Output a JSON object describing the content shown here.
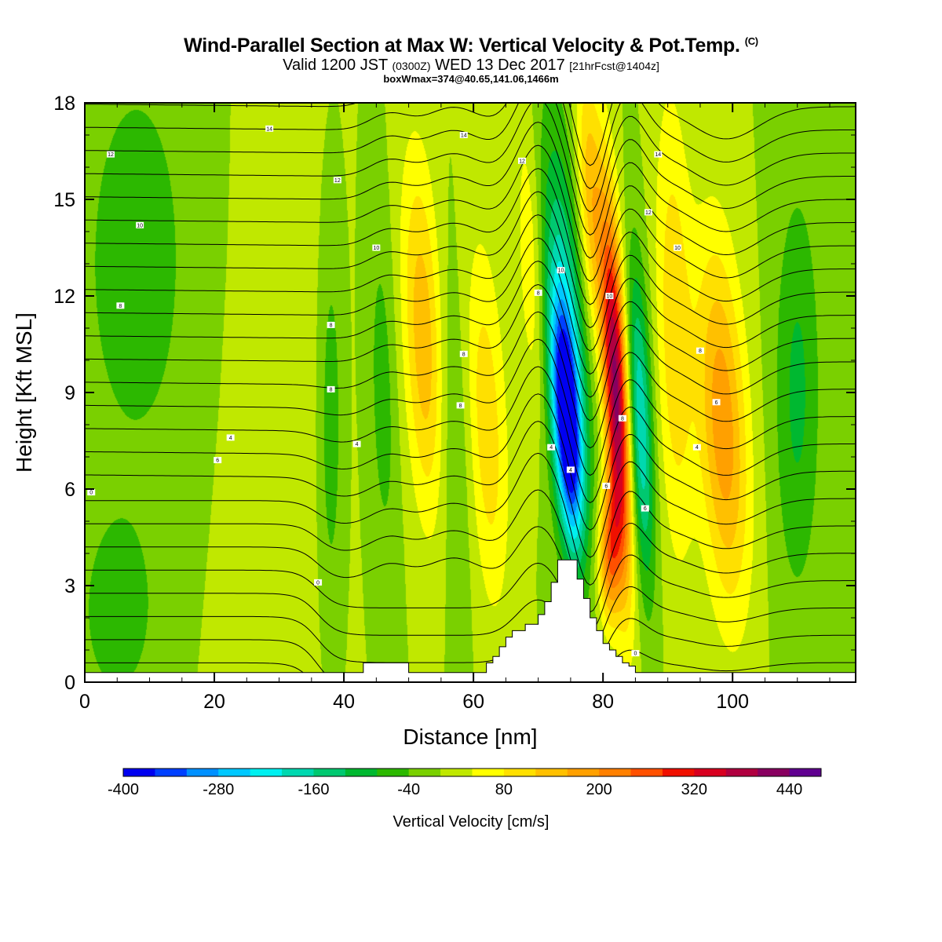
{
  "header": {
    "title": "Wind-Parallel Section at Max W: Vertical Velocity & Pot.Temp.",
    "copyright": "(C)",
    "valid_prefix": "Valid 1200 JST",
    "valid_utc": "(0300Z)",
    "valid_date": "WED 13 Dec 2017",
    "forecast": "[21hrFcst@1404z]",
    "box_wmax": "boxWmax=374@40.65,141.06,1466m"
  },
  "chart_data": {
    "type": "heatmap",
    "title": "Wind-Parallel Section at Max W: Vertical Velocity & Pot.Temp.",
    "xlabel": "Distance [nm]",
    "ylabel": "Height [Kft MSL]",
    "xlim": [
      0,
      119
    ],
    "ylim": [
      0,
      18
    ],
    "x_ticks": [
      0,
      20,
      40,
      60,
      80,
      100
    ],
    "y_ticks": [
      0,
      3,
      6,
      9,
      12,
      15,
      18
    ],
    "colorbar": {
      "label": "Vertical Velocity [cm/s]",
      "tick_labels": [
        -400,
        -280,
        -160,
        -40,
        80,
        200,
        320,
        440
      ],
      "bounds": [
        -400,
        480
      ],
      "step": 40,
      "colors": [
        "#0000f0",
        "#0040ff",
        "#0090ff",
        "#00c8ff",
        "#00f0f0",
        "#00d8b0",
        "#00c870",
        "#00b830",
        "#2cb800",
        "#7ad000",
        "#c0e800",
        "#ffff00",
        "#ffe000",
        "#ffc000",
        "#ffa000",
        "#ff8000",
        "#ff5000",
        "#f01000",
        "#d80020",
        "#b00040",
        "#880060",
        "#600090"
      ]
    },
    "terrain": [
      [
        42,
        0.3
      ],
      [
        43,
        0.6
      ],
      [
        49,
        0.6
      ],
      [
        50,
        0.3
      ],
      [
        61,
        0.3
      ],
      [
        62,
        0.6
      ],
      [
        63,
        0.8
      ],
      [
        64,
        1.1
      ],
      [
        65,
        1.4
      ],
      [
        66,
        1.6
      ],
      [
        68,
        1.8
      ],
      [
        70,
        2.1
      ],
      [
        71,
        2.5
      ],
      [
        72,
        3.1
      ],
      [
        73,
        3.8
      ],
      [
        75,
        3.8
      ],
      [
        76,
        3.2
      ],
      [
        77,
        2.6
      ],
      [
        78,
        2.0
      ],
      [
        79,
        1.6
      ],
      [
        80,
        1.2
      ],
      [
        81,
        1.0
      ],
      [
        82,
        0.8
      ],
      [
        83,
        0.6
      ],
      [
        84,
        0.5
      ],
      [
        85,
        0.3
      ]
    ],
    "w_features": [
      {
        "x": 74.5,
        "y": 8.0,
        "sx": 1.4,
        "sy": 2.5,
        "amp": -390,
        "tilt": -0.27
      },
      {
        "x": 74.0,
        "y": 11.0,
        "sx": 2.6,
        "sy": 4.5,
        "amp": -170,
        "tilt": -0.28
      },
      {
        "x": 82.0,
        "y": 9.0,
        "sx": 1.3,
        "sy": 4.0,
        "amp": 420,
        "tilt": -0.22
      },
      {
        "x": 81.0,
        "y": 4.0,
        "sx": 1.2,
        "sy": 1.5,
        "amp": 220,
        "tilt": 0.0
      },
      {
        "x": 85.8,
        "y": 8.0,
        "sx": 1.3,
        "sy": 3.5,
        "amp": -200,
        "tilt": -0.18
      },
      {
        "x": 98.5,
        "y": 8.0,
        "sx": 2.6,
        "sy": 4.0,
        "amp": 190,
        "tilt": -0.22
      },
      {
        "x": 91.0,
        "y": 11.0,
        "sx": 2.0,
        "sy": 5.0,
        "amp": 110,
        "tilt": -0.1
      },
      {
        "x": 52.5,
        "y": 10.5,
        "sx": 2.2,
        "sy": 4.0,
        "amp": 160,
        "tilt": -0.22
      },
      {
        "x": 62.0,
        "y": 8.0,
        "sx": 2.2,
        "sy": 4.0,
        "amp": 110,
        "tilt": -0.2
      },
      {
        "x": 46.0,
        "y": 9.0,
        "sx": 1.5,
        "sy": 4.0,
        "amp": -60,
        "tilt": -0.1
      },
      {
        "x": 38.0,
        "y": 8.0,
        "sx": 1.2,
        "sy": 4.0,
        "amp": -70,
        "tilt": 0.0
      },
      {
        "x": 56.5,
        "y": 8.0,
        "sx": 2.2,
        "sy": 4.0,
        "amp": -60,
        "tilt": -0.15
      },
      {
        "x": 69.0,
        "y": 13.0,
        "sx": 1.5,
        "sy": 3.5,
        "amp": 90,
        "tilt": -0.2
      },
      {
        "x": 78.0,
        "y": 15.0,
        "sx": 1.4,
        "sy": 3.0,
        "amp": 150,
        "tilt": -0.2
      },
      {
        "x": 110.0,
        "y": 9.0,
        "sx": 2.5,
        "sy": 4.5,
        "amp": -90,
        "tilt": 0.0
      },
      {
        "x": 8.0,
        "y": 13.0,
        "sx": 8.0,
        "sy": 6.0,
        "amp": -55,
        "tilt": 0.0
      },
      {
        "x": 28.0,
        "y": 8.0,
        "sx": 6.0,
        "sy": 8.0,
        "amp": 25,
        "tilt": 0.0
      },
      {
        "x": 5.0,
        "y": 2.0,
        "sx": 4.0,
        "sy": 2.0,
        "amp": -60,
        "tilt": 0.0
      }
    ],
    "theta_contour_labels": [
      {
        "x": 28.5,
        "y": 17.2,
        "text": "14"
      },
      {
        "x": 58.5,
        "y": 17.0,
        "text": "14"
      },
      {
        "x": 88.5,
        "y": 16.4,
        "text": "14"
      },
      {
        "x": 4.0,
        "y": 16.4,
        "text": "12"
      },
      {
        "x": 39.0,
        "y": 15.6,
        "text": "12"
      },
      {
        "x": 67.5,
        "y": 16.2,
        "text": "12"
      },
      {
        "x": 87.0,
        "y": 14.6,
        "text": "12"
      },
      {
        "x": 8.5,
        "y": 14.2,
        "text": "10"
      },
      {
        "x": 45.0,
        "y": 13.5,
        "text": "10"
      },
      {
        "x": 73.5,
        "y": 12.8,
        "text": "10"
      },
      {
        "x": 81.0,
        "y": 12.0,
        "text": "10"
      },
      {
        "x": 91.5,
        "y": 13.5,
        "text": "10"
      },
      {
        "x": 5.5,
        "y": 11.7,
        "text": "8"
      },
      {
        "x": 38.0,
        "y": 11.1,
        "text": "8"
      },
      {
        "x": 70.0,
        "y": 12.1,
        "text": "8"
      },
      {
        "x": 58.5,
        "y": 10.2,
        "text": "8"
      },
      {
        "x": 95.0,
        "y": 10.3,
        "text": "8"
      },
      {
        "x": 38.0,
        "y": 9.1,
        "text": "8"
      },
      {
        "x": 58.0,
        "y": 8.6,
        "text": "8"
      },
      {
        "x": 97.5,
        "y": 8.7,
        "text": "6"
      },
      {
        "x": 22.5,
        "y": 7.6,
        "text": "4"
      },
      {
        "x": 42.0,
        "y": 7.4,
        "text": "4"
      },
      {
        "x": 72.0,
        "y": 7.3,
        "text": "4"
      },
      {
        "x": 94.5,
        "y": 7.3,
        "text": "4"
      },
      {
        "x": 20.5,
        "y": 6.9,
        "text": "6"
      },
      {
        "x": 75.0,
        "y": 6.6,
        "text": "4"
      },
      {
        "x": 80.5,
        "y": 6.1,
        "text": "6"
      },
      {
        "x": 83.0,
        "y": 8.2,
        "text": "8"
      },
      {
        "x": 86.5,
        "y": 5.4,
        "text": "6"
      },
      {
        "x": 1.0,
        "y": 5.9,
        "text": "0"
      },
      {
        "x": 36.0,
        "y": 3.1,
        "text": "0"
      },
      {
        "x": 85.0,
        "y": 0.9,
        "text": "0"
      }
    ]
  }
}
